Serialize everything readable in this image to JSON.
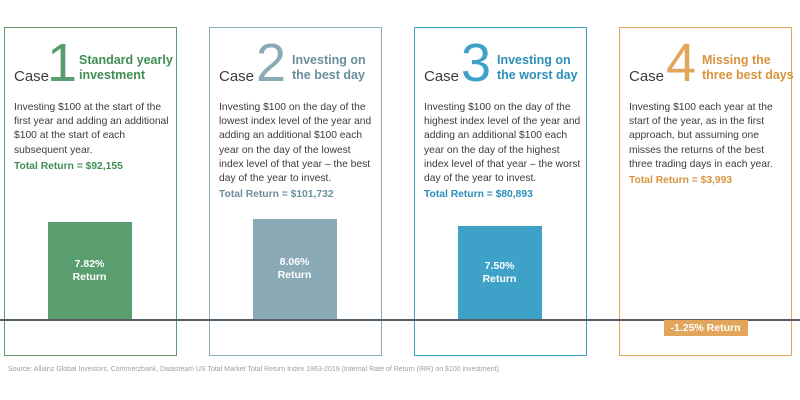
{
  "chart_data": {
    "type": "bar",
    "categories": [
      "Case 1",
      "Case 2",
      "Case 3",
      "Case 4"
    ],
    "values": [
      7.82,
      8.06,
      7.5,
      -1.25
    ],
    "value_labels": [
      "7.82%",
      "8.06%",
      "7.50%",
      "-1.25%"
    ],
    "ylim": [
      -2,
      8.5
    ],
    "colors": [
      "#5a9e6f",
      "#8aaab5",
      "#3ea1c8",
      "#e1a65b"
    ],
    "cases": [
      {
        "case_word": "Case",
        "number": "1",
        "title_line1": "Standard yearly",
        "title_line2": "investment",
        "description": "Investing $100 at the start of the first year and adding an additional $100 at the start of each subsequent year.",
        "total_return": "Total Return = $92,155",
        "bar_text": "7.82%",
        "bar_sub": "Return",
        "color": "#5a9e6f",
        "text_color": "#3f8e53"
      },
      {
        "case_word": "Case",
        "number": "2",
        "title_line1": "Investing on",
        "title_line2": "the best day",
        "description": "Investing $100 on the day of the lowest index level of the year and adding an additional $100 each year on the day of the lowest index level of that year – the best day of the year to invest.",
        "total_return": "Total Return = $101,732",
        "bar_text": "8.06%",
        "bar_sub": "Return",
        "color": "#8aaab5",
        "text_color": "#6b8e9b"
      },
      {
        "case_word": "Case",
        "number": "3",
        "title_line1": "Investing on",
        "title_line2": "the worst day",
        "description": "Investing $100 on the day of the highest index level of the year and adding an additional $100 each year on the day of the highest index level of that year – the worst day of the year to invest.",
        "total_return": "Total Return = $80,893",
        "bar_text": "7.50%",
        "bar_sub": "Return",
        "color": "#3ea1c8",
        "text_color": "#2b8fb8"
      },
      {
        "case_word": "Case",
        "number": "4",
        "title_line1": "Missing the",
        "title_line2": "three best days",
        "description": "Investing $100 each year at the start of the year, as in the first approach, but assuming one misses the returns of the best three trading days in each year.",
        "total_return": "Total Return = $3,993",
        "bar_text": "-1.25% Return",
        "bar_sub": "",
        "color": "#e1a65b",
        "text_color": "#d9933c"
      }
    ]
  },
  "source": "Source: Allianz Global Investors, Commerzbank, Datasteam US Total Market Total Return Index 1963-2019 (Internal Rate of Return (IRR) on $100 investment)."
}
